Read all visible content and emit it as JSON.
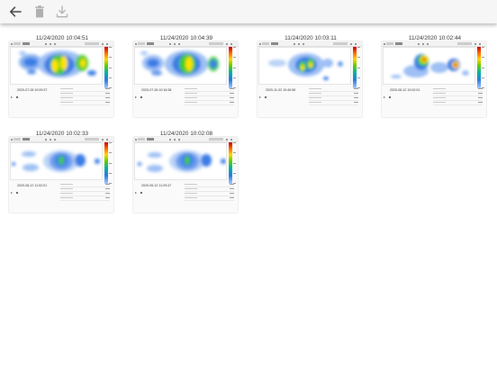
{
  "toolbar": {
    "back_icon": "arrow-left-icon",
    "delete_icon": "trash-icon",
    "export_icon": "download-tray-icon"
  },
  "colors": {
    "toolbar_bg": "#f6f6f6",
    "icon_active": "#444444",
    "icon_disabled": "#b0b0b0",
    "heat_blue": "#3b7de6",
    "heat_green": "#44cc22",
    "heat_yellow": "#ffe400",
    "heat_red": "#e60000"
  },
  "recordings": [
    {
      "title": "11/24/2020 10:04:51",
      "date": "2020-07-28 10:09:37"
    },
    {
      "title": "11/24/2020 10:04:39",
      "date": "2020-07-28 10:16:38"
    },
    {
      "title": "11/24/2020 10:03:11",
      "date": "2020-11-02 10:40:08"
    },
    {
      "title": "11/24/2020 10:02:44",
      "date": "2020-06-12 10:02:01"
    },
    {
      "title": "11/24/2020 10:02:33",
      "date": "2020-06-12 11:02:01"
    },
    {
      "title": "11/24/2020 10:02:08",
      "date": "2020-06-12 11:29:47"
    }
  ]
}
